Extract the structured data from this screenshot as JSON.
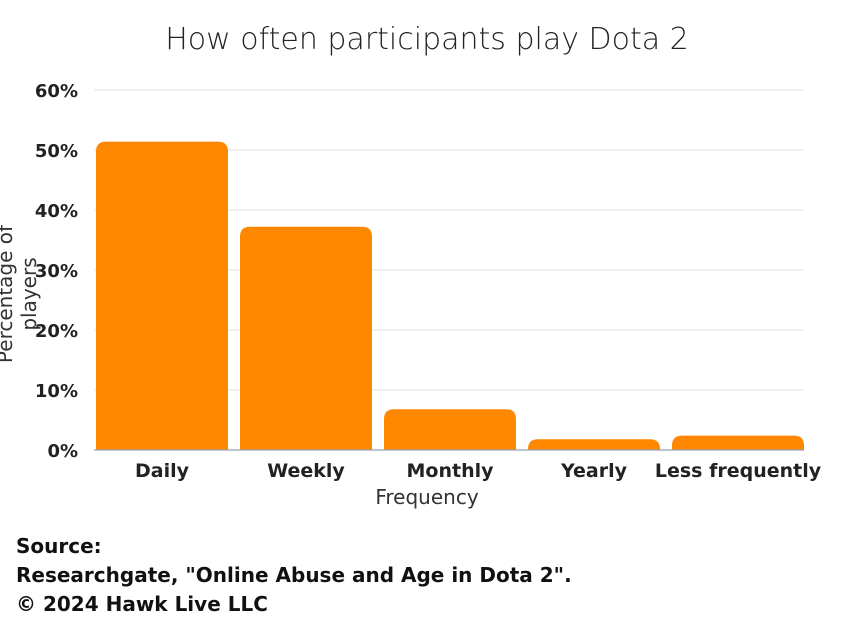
{
  "chart_data": {
    "type": "bar",
    "title": "How often participants play Dota 2",
    "xlabel": "Frequency",
    "ylabel": "Percentage of players",
    "categories": [
      "Daily",
      "Weekly",
      "Monthly",
      "Yearly",
      "Less frequently"
    ],
    "values": [
      51.4,
      37.2,
      6.8,
      1.8,
      2.4
    ],
    "ylim": [
      0,
      60
    ],
    "yticks": [
      "0%",
      "10%",
      "20%",
      "30%",
      "40%",
      "50%",
      "60%"
    ],
    "grid": true,
    "bar_color": "#FF8800"
  },
  "footer": {
    "line1": "Source:",
    "line2": "Researchgate, \"Online Abuse and Age in Dota 2\".",
    "line3": "© 2024 Hawk Live LLC"
  }
}
